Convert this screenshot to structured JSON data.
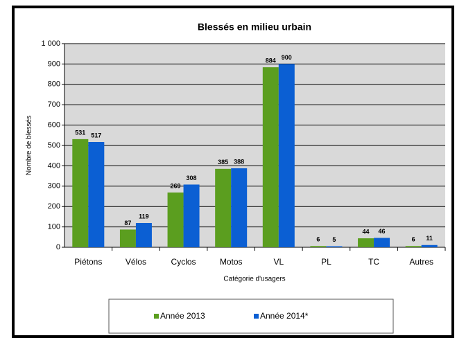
{
  "chart_data": {
    "type": "bar",
    "title": "Blessés en milieu urbain",
    "y_label": "Nombre de blessés",
    "x_label": "Catégorie d'usagers",
    "categories": [
      "Piétons",
      "Vélos",
      "Cyclos",
      "Motos",
      "VL",
      "PL",
      "TC",
      "Autres"
    ],
    "series": [
      {
        "name": "Année 2013",
        "color": "#5b9e1f",
        "values": [
          531,
          87,
          269,
          385,
          884,
          6,
          44,
          6
        ]
      },
      {
        "name": "Année 2014*",
        "color": "#0b5fd3",
        "values": [
          517,
          119,
          308,
          388,
          900,
          5,
          46,
          11
        ]
      }
    ],
    "ylim": [
      0,
      1000
    ],
    "yticks": [
      0,
      100,
      200,
      300,
      400,
      500,
      600,
      700,
      800,
      900,
      {
        "value": 1000,
        "label": "1 000"
      }
    ],
    "grid": true,
    "legend": "bottom"
  }
}
